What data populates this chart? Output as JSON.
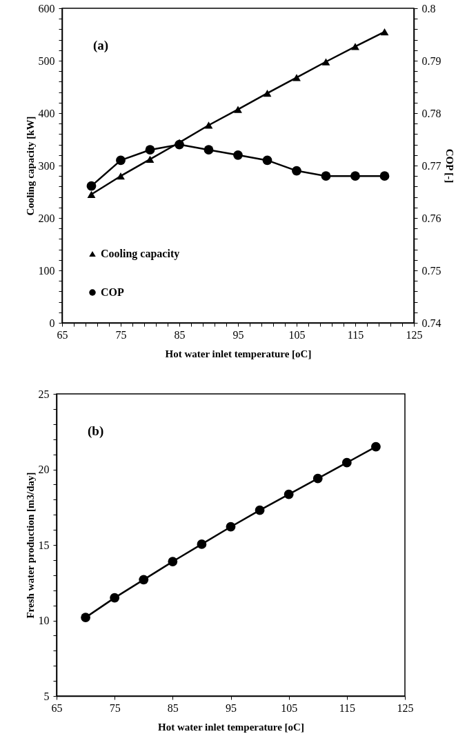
{
  "chart_data": [
    {
      "type": "line",
      "annotations": [
        "(a)"
      ],
      "xlabel": "Hot water inlet temperature [oC]",
      "ylabel": "Cooling capacity [kW]",
      "y2label": "COP [-]",
      "x": [
        70,
        75,
        80,
        85,
        90,
        95,
        100,
        105,
        110,
        115,
        120
      ],
      "series": [
        {
          "name": "Cooling capacity",
          "color": "#000000",
          "marker": "triangle",
          "values": [
            245,
            280,
            312,
            344,
            377,
            407,
            438,
            468,
            498,
            527,
            555
          ]
        },
        {
          "name": "COP",
          "color": "#000000",
          "marker": "circle",
          "axis": "y2",
          "values": [
            0.7661,
            0.771,
            0.773,
            0.774,
            0.773,
            0.772,
            0.771,
            0.769,
            0.768,
            0.768,
            0.768
          ]
        }
      ],
      "xlim": [
        65,
        125
      ],
      "xticks": [
        65,
        {
          "value": 67,
          "label": null
        },
        {
          "value": 69,
          "label": null
        },
        {
          "value": 71,
          "label": null
        },
        {
          "value": 73,
          "label": null
        },
        75,
        {
          "value": 77,
          "label": null
        },
        {
          "value": 79,
          "label": null
        },
        {
          "value": 81,
          "label": null
        },
        {
          "value": 83,
          "label": null
        },
        85,
        {
          "value": 87,
          "label": null
        },
        {
          "value": 89,
          "label": null
        },
        {
          "value": 91,
          "label": null
        },
        {
          "value": 93,
          "label": null
        },
        95,
        {
          "value": 97,
          "label": null
        },
        {
          "value": 99,
          "label": null
        },
        {
          "value": 101,
          "label": null
        },
        {
          "value": 103,
          "label": null
        },
        105,
        {
          "value": 107,
          "label": null
        },
        {
          "value": 109,
          "label": null
        },
        {
          "value": 111,
          "label": null
        },
        {
          "value": 113,
          "label": null
        },
        115,
        {
          "value": 117,
          "label": null
        },
        {
          "value": 119,
          "label": null
        },
        {
          "value": 121,
          "label": null
        },
        {
          "value": 123,
          "label": null
        },
        125
      ],
      "ylim": [
        0,
        600
      ],
      "yticks": [
        0,
        {
          "value": 20,
          "label": null
        },
        {
          "value": 40,
          "label": null
        },
        {
          "value": 60,
          "label": null
        },
        {
          "value": 80,
          "label": null
        },
        100,
        {
          "value": 120,
          "label": null
        },
        {
          "value": 140,
          "label": null
        },
        {
          "value": 160,
          "label": null
        },
        {
          "value": 180,
          "label": null
        },
        200,
        {
          "value": 220,
          "label": null
        },
        {
          "value": 240,
          "label": null
        },
        {
          "value": 260,
          "label": null
        },
        {
          "value": 280,
          "label": null
        },
        300,
        {
          "value": 320,
          "label": null
        },
        {
          "value": 340,
          "label": null
        },
        {
          "value": 360,
          "label": null
        },
        {
          "value": 380,
          "label": null
        },
        400,
        {
          "value": 420,
          "label": null
        },
        {
          "value": 440,
          "label": null
        },
        {
          "value": 460,
          "label": null
        },
        {
          "value": 480,
          "label": null
        },
        500,
        {
          "value": 520,
          "label": null
        },
        {
          "value": 540,
          "label": null
        },
        {
          "value": 560,
          "label": null
        },
        {
          "value": 580,
          "label": null
        },
        600
      ],
      "y2lim": [
        0.74,
        0.8
      ],
      "y2ticks": [
        0.74,
        {
          "value": 0.742,
          "label": null
        },
        {
          "value": 0.744,
          "label": null
        },
        {
          "value": 0.746,
          "label": null
        },
        {
          "value": 0.748,
          "label": null
        },
        0.75,
        {
          "value": 0.752,
          "label": null
        },
        {
          "value": 0.754,
          "label": null
        },
        {
          "value": 0.756,
          "label": null
        },
        {
          "value": 0.758,
          "label": null
        },
        0.76,
        {
          "value": 0.762,
          "label": null
        },
        {
          "value": 0.764,
          "label": null
        },
        {
          "value": 0.766,
          "label": null
        },
        {
          "value": 0.768,
          "label": null
        },
        0.77,
        {
          "value": 0.772,
          "label": null
        },
        {
          "value": 0.774,
          "label": null
        },
        {
          "value": 0.776,
          "label": null
        },
        {
          "value": 0.778,
          "label": null
        },
        0.78,
        {
          "value": 0.782,
          "label": null
        },
        {
          "value": 0.784,
          "label": null
        },
        {
          "value": 0.786,
          "label": null
        },
        {
          "value": 0.788,
          "label": null
        },
        0.79,
        {
          "value": 0.792,
          "label": null
        },
        {
          "value": 0.794,
          "label": null
        },
        {
          "value": 0.796,
          "label": null
        },
        {
          "value": 0.798,
          "label": null
        },
        0.8
      ],
      "legend": "bottom left"
    },
    {
      "type": "line",
      "annotations": [
        "(b)"
      ],
      "xlabel": "Hot water inlet temperature [oC]",
      "ylabel": "Fresh water production [m3/day]",
      "x": [
        70,
        75,
        80,
        85,
        90,
        95,
        100,
        105,
        110,
        115,
        120
      ],
      "series": [
        {
          "color": "#000000",
          "marker": "circle",
          "values": [
            10.2,
            11.5,
            12.7,
            13.9,
            15.05,
            16.2,
            17.3,
            18.35,
            19.4,
            20.45,
            21.5
          ]
        }
      ],
      "xlim": [
        65,
        125
      ],
      "xticks": [
        65,
        75,
        85,
        95,
        105,
        115,
        125
      ],
      "ylim": [
        5,
        25
      ],
      "yticks": [
        5,
        {
          "value": 6,
          "label": null
        },
        {
          "value": 7,
          "label": null
        },
        {
          "value": 8,
          "label": null
        },
        {
          "value": 9,
          "label": null
        },
        10,
        {
          "value": 11,
          "label": null
        },
        {
          "value": 12,
          "label": null
        },
        {
          "value": 13,
          "label": null
        },
        {
          "value": 14,
          "label": null
        },
        15,
        {
          "value": 16,
          "label": null
        },
        {
          "value": 17,
          "label": null
        },
        {
          "value": 18,
          "label": null
        },
        {
          "value": 19,
          "label": null
        },
        20,
        {
          "value": 21,
          "label": null
        },
        {
          "value": 22,
          "label": null
        },
        {
          "value": 23,
          "label": null
        },
        {
          "value": 24,
          "label": null
        },
        25
      ]
    }
  ]
}
